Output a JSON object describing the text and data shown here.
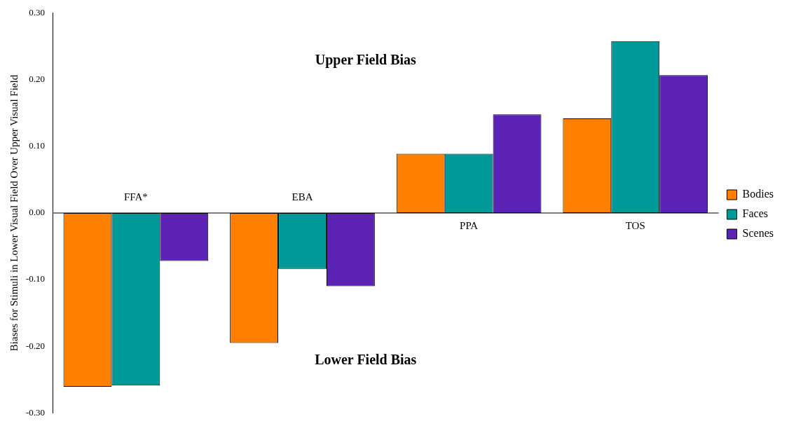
{
  "chart_data": {
    "type": "bar",
    "ylabel": "Biases for Stimuli in Lower Visual Field Over Upper Visual Field",
    "categories": [
      "FFA*",
      "EBA",
      "PPA",
      "TOS"
    ],
    "series": [
      {
        "name": "Bodies",
        "color": "#ff7f00",
        "values": [
          -0.261,
          -0.195,
          0.089,
          0.142
        ]
      },
      {
        "name": "Faces",
        "color": "#009999",
        "values": [
          -0.259,
          -0.084,
          0.089,
          0.258
        ]
      },
      {
        "name": "Scenes",
        "color": "#5b22b4",
        "values": [
          -0.072,
          -0.11,
          0.148,
          0.207
        ]
      }
    ],
    "ylim": [
      -0.3,
      0.3
    ],
    "yticks": [
      {
        "value": -0.3,
        "label": "-0.30"
      },
      {
        "value": -0.2,
        "label": "-0.20"
      },
      {
        "value": -0.1,
        "label": "-0.10"
      },
      {
        "value": 0,
        "label": "0.00"
      },
      {
        "value": 0.1,
        "label": "0.10"
      },
      {
        "value": 0.2,
        "label": "0.20"
      },
      {
        "value": 0.3,
        "label": "0.30"
      }
    ],
    "annotations": [
      "Upper Field Bias",
      "Lower Field Bias"
    ],
    "grid": false,
    "legend": "right"
  }
}
